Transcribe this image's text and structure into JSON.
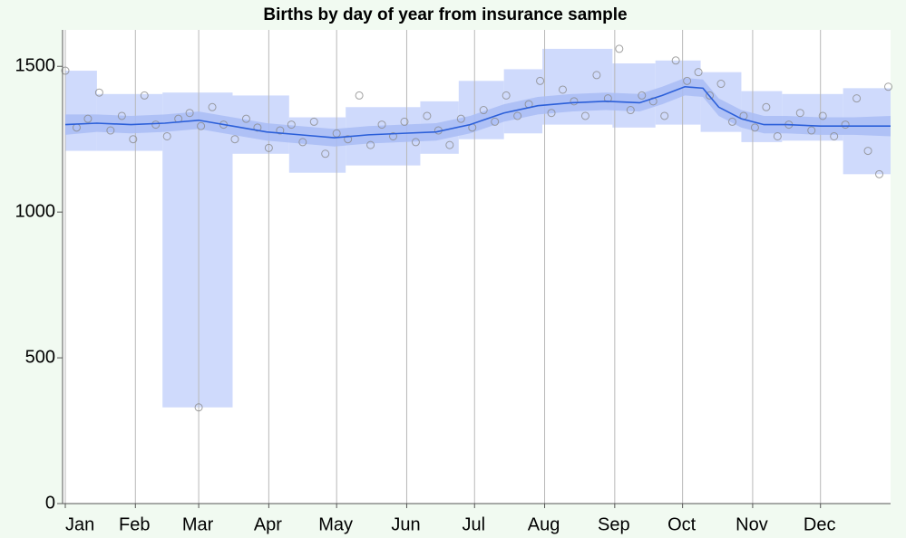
{
  "chart_data": {
    "type": "scatter",
    "title": "Births by day of year from insurance sample",
    "xlim": [
      1,
      366
    ],
    "ylim": [
      0,
      1625
    ],
    "xticks": [
      {
        "value": 1,
        "label": "Jan"
      },
      {
        "value": 32,
        "label": "Feb"
      },
      {
        "value": 60,
        "label": "Mar"
      },
      {
        "value": 91,
        "label": "Apr"
      },
      {
        "value": 121,
        "label": "May"
      },
      {
        "value": 152,
        "label": "Jun"
      },
      {
        "value": 182,
        "label": "Jul"
      },
      {
        "value": 213,
        "label": "Aug"
      },
      {
        "value": 244,
        "label": "Sep"
      },
      {
        "value": 274,
        "label": "Oct"
      },
      {
        "value": 305,
        "label": "Nov"
      },
      {
        "value": 335,
        "label": "Dec"
      }
    ],
    "yticks": [
      0,
      500,
      1000,
      1500
    ],
    "grid": true,
    "x": [
      1,
      6,
      11,
      16,
      21,
      26,
      31,
      36,
      41,
      46,
      51,
      56,
      60,
      61,
      66,
      71,
      76,
      81,
      86,
      91,
      96,
      101,
      106,
      111,
      116,
      121,
      126,
      131,
      136,
      141,
      146,
      151,
      156,
      161,
      166,
      171,
      176,
      181,
      186,
      191,
      196,
      201,
      206,
      211,
      216,
      221,
      226,
      231,
      236,
      241,
      246,
      251,
      256,
      261,
      266,
      271,
      276,
      281,
      286,
      291,
      296,
      301,
      306,
      311,
      316,
      321,
      326,
      331,
      336,
      341,
      346,
      351,
      356,
      361,
      365
    ],
    "values": [
      1485,
      1290,
      1320,
      1410,
      1280,
      1330,
      1250,
      1400,
      1300,
      1260,
      1320,
      1340,
      330,
      1295,
      1360,
      1300,
      1250,
      1320,
      1290,
      1220,
      1280,
      1300,
      1240,
      1310,
      1200,
      1270,
      1250,
      1400,
      1230,
      1300,
      1260,
      1310,
      1240,
      1330,
      1280,
      1230,
      1320,
      1290,
      1350,
      1310,
      1400,
      1330,
      1370,
      1450,
      1340,
      1420,
      1380,
      1330,
      1470,
      1390,
      1560,
      1350,
      1400,
      1380,
      1330,
      1520,
      1450,
      1480,
      1400,
      1440,
      1310,
      1330,
      1290,
      1360,
      1260,
      1300,
      1340,
      1280,
      1330,
      1260,
      1300,
      1390,
      1210,
      1130,
      1430
    ],
    "point_color": "#8a8a8a",
    "trend": {
      "color": "#2b5fd9",
      "x": [
        1,
        15,
        30,
        45,
        60,
        75,
        90,
        105,
        120,
        135,
        150,
        165,
        180,
        195,
        210,
        225,
        240,
        255,
        265,
        275,
        283,
        290,
        300,
        310,
        320,
        335,
        350,
        366
      ],
      "values": [
        1300,
        1305,
        1300,
        1305,
        1315,
        1295,
        1275,
        1265,
        1255,
        1265,
        1270,
        1275,
        1300,
        1340,
        1365,
        1375,
        1380,
        1375,
        1400,
        1430,
        1425,
        1360,
        1320,
        1300,
        1300,
        1295,
        1295,
        1295
      ],
      "lower": [
        1265,
        1275,
        1270,
        1275,
        1285,
        1265,
        1245,
        1235,
        1225,
        1235,
        1240,
        1245,
        1270,
        1310,
        1335,
        1345,
        1350,
        1345,
        1370,
        1400,
        1395,
        1330,
        1290,
        1270,
        1270,
        1265,
        1265,
        1260
      ],
      "upper": [
        1335,
        1335,
        1330,
        1335,
        1345,
        1325,
        1305,
        1295,
        1285,
        1295,
        1300,
        1305,
        1330,
        1370,
        1395,
        1405,
        1410,
        1405,
        1430,
        1460,
        1455,
        1390,
        1350,
        1330,
        1330,
        1325,
        1325,
        1330
      ],
      "band_color": "#a9bcf5"
    },
    "band": {
      "color": "#cfdafc",
      "edges": [
        1,
        15,
        44,
        75,
        100,
        125,
        158,
        175,
        195,
        212,
        243,
        262,
        282,
        300,
        318,
        345,
        366
      ],
      "lower": [
        1210,
        1210,
        330,
        1200,
        1135,
        1160,
        1200,
        1250,
        1270,
        1300,
        1290,
        1300,
        1275,
        1240,
        1245,
        1130
      ],
      "upper": [
        1485,
        1405,
        1410,
        1400,
        1325,
        1360,
        1380,
        1450,
        1490,
        1560,
        1510,
        1520,
        1480,
        1415,
        1405,
        1425
      ]
    }
  }
}
